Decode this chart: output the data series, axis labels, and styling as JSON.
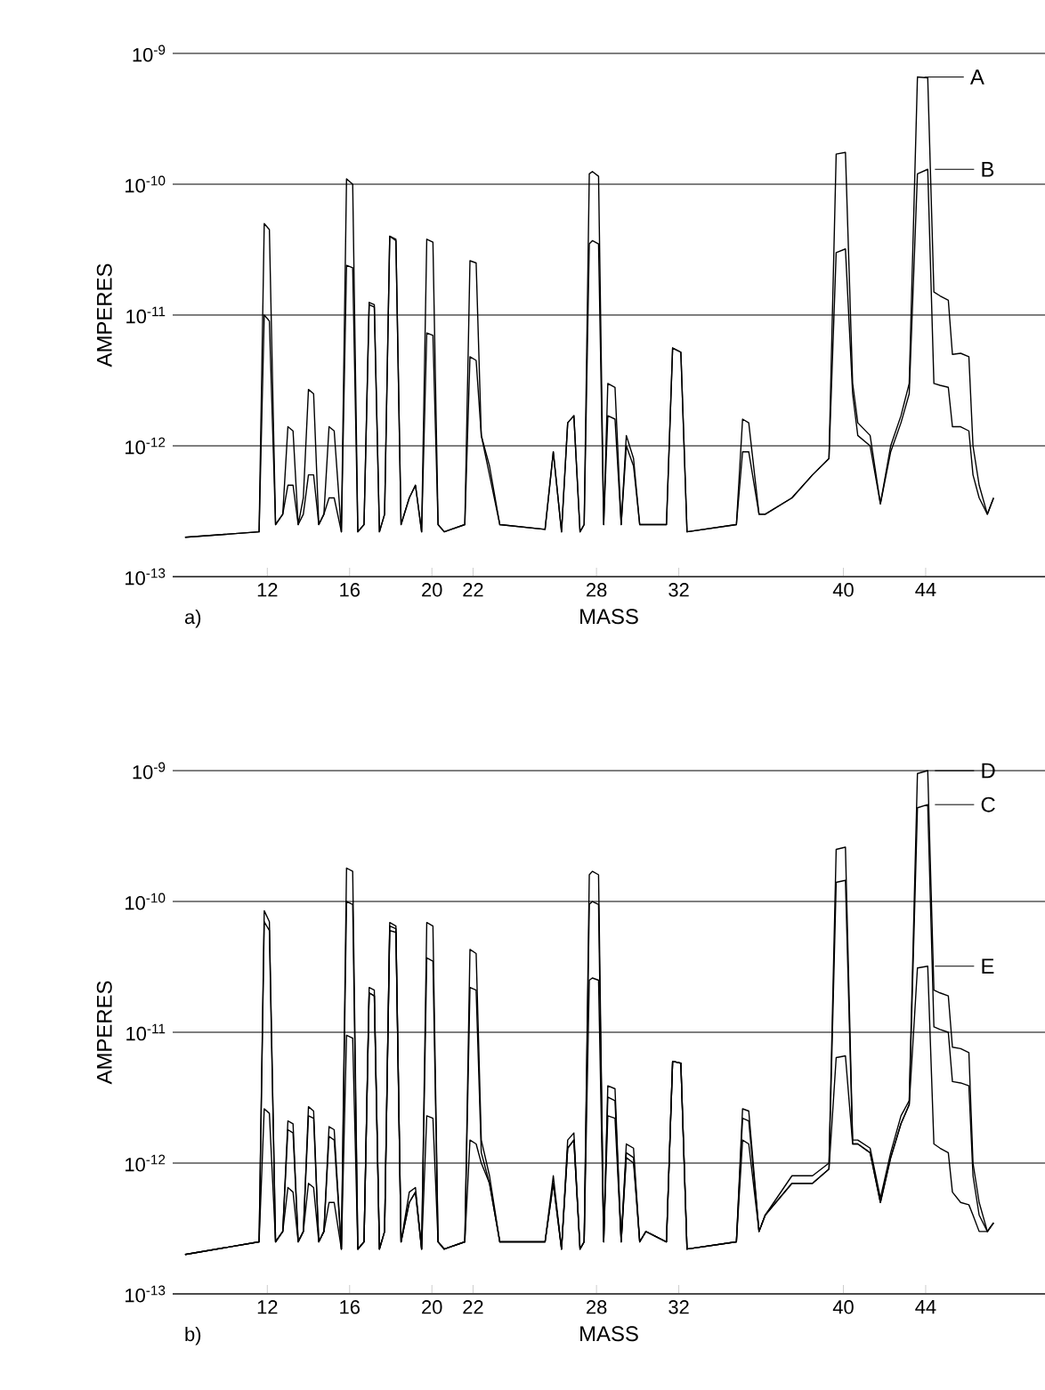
{
  "chart_data": [
    {
      "type": "line",
      "xlabel": "MASS",
      "ylabel": "AMPERES",
      "log": "y",
      "grid": "y",
      "annotations": [
        "a)"
      ],
      "legend": "top right",
      "xlim": [
        7.4,
        49.8
      ],
      "ylim": [
        1e-13,
        1e-09
      ],
      "xticks": [
        12,
        16,
        20,
        22,
        28,
        32,
        40,
        44
      ],
      "yticks": [
        {
          "value": 1e-13,
          "label": "10$^{-13}$"
        },
        {
          "value": 1e-12,
          "label": "10$^{-12}$"
        },
        {
          "value": 1e-11,
          "label": "10$^{-11}$"
        },
        {
          "value": 1e-10,
          "label": "10$^{-10}$"
        },
        {
          "value": 1e-09,
          "label": "10$^{-9}$"
        }
      ],
      "x": [
        8,
        11.6,
        11.85,
        12.1,
        12.4,
        12.75,
        13,
        13.25,
        13.5,
        13.75,
        14,
        14.25,
        14.5,
        14.75,
        15,
        15.25,
        15.6,
        15.85,
        16.15,
        16.4,
        16.7,
        16.95,
        17.2,
        17.45,
        17.7,
        17.95,
        18.25,
        18.5,
        18.9,
        19.2,
        19.5,
        19.75,
        20.05,
        20.3,
        20.6,
        21.6,
        21.85,
        22.15,
        22.4,
        22.8,
        23.3,
        25.5,
        25.9,
        26.3,
        26.6,
        26.9,
        27.2,
        27.4,
        27.65,
        27.8,
        28.1,
        28.35,
        28.55,
        28.9,
        29.2,
        29.45,
        29.8,
        30.1,
        30.4,
        31.4,
        31.7,
        32.1,
        32.4,
        34.8,
        35.1,
        35.4,
        35.9,
        36.2,
        37.5,
        38.5,
        39.3,
        39.65,
        40.1,
        40.45,
        40.7,
        41.3,
        41.8,
        42.3,
        42.8,
        43.2,
        43.6,
        44.1,
        44.4,
        44.7,
        45.1,
        45.3,
        45.7,
        46.1,
        46.3,
        46.6,
        47.0,
        47.3
      ],
      "series": [
        {
          "name": "A",
          "color": "#000000",
          "values": [
            2e-13,
            2.2e-13,
            5e-11,
            4.5e-11,
            2.5e-13,
            3e-13,
            1.4e-12,
            1.3e-12,
            2.5e-13,
            4e-13,
            2.7e-12,
            2.5e-12,
            2.5e-13,
            3e-13,
            1.4e-12,
            1.3e-12,
            2.2e-13,
            1.1e-10,
            1e-10,
            2.2e-13,
            2.5e-13,
            1.25e-11,
            1.2e-11,
            2.2e-13,
            3e-13,
            4e-11,
            3.8e-11,
            2.5e-13,
            4e-13,
            5e-13,
            2.2e-13,
            3.8e-11,
            3.6e-11,
            2.5e-13,
            2.2e-13,
            2.5e-13,
            2.6e-11,
            2.5e-11,
            1.2e-12,
            7e-13,
            2.5e-13,
            2.3e-13,
            9e-13,
            2.2e-13,
            1.5e-12,
            1.7e-12,
            2.2e-13,
            2.5e-13,
            1.2e-10,
            1.25e-10,
            1.15e-10,
            2.5e-13,
            3e-12,
            2.8e-12,
            2.5e-13,
            1.2e-12,
            8e-13,
            2.5e-13,
            2.5e-13,
            2.5e-13,
            5.6e-12,
            5.2e-12,
            2.2e-13,
            2.5e-13,
            1.6e-12,
            1.5e-12,
            3e-13,
            3e-13,
            4e-13,
            6e-13,
            8e-13,
            1.7e-10,
            1.75e-10,
            3e-12,
            1.5e-12,
            1.2e-12,
            3.6e-13,
            1e-12,
            1.7e-12,
            3e-12,
            6.6e-10,
            6.5e-10,
            1.5e-11,
            1.4e-11,
            1.3e-11,
            5e-12,
            5.1e-12,
            4.8e-12,
            1e-12,
            5e-13,
            3e-13,
            4e-13
          ]
        },
        {
          "name": "B",
          "color": "#000000",
          "values": [
            2e-13,
            2.2e-13,
            1e-11,
            9e-12,
            2.5e-13,
            3e-13,
            5e-13,
            5e-13,
            2.5e-13,
            3e-13,
            6e-13,
            6e-13,
            2.5e-13,
            3e-13,
            4e-13,
            4e-13,
            2.2e-13,
            2.4e-11,
            2.3e-11,
            2.2e-13,
            2.5e-13,
            1.2e-11,
            1.15e-11,
            2.2e-13,
            3e-13,
            4e-11,
            3.7e-11,
            2.5e-13,
            4e-13,
            5e-13,
            2.2e-13,
            7.3e-12,
            7e-12,
            2.5e-13,
            2.2e-13,
            2.5e-13,
            4.8e-12,
            4.5e-12,
            1.2e-12,
            6e-13,
            2.5e-13,
            2.3e-13,
            9e-13,
            2.2e-13,
            1.5e-12,
            1.7e-12,
            2.2e-13,
            2.5e-13,
            3.5e-11,
            3.7e-11,
            3.5e-11,
            2.5e-13,
            1.7e-12,
            1.6e-12,
            2.5e-13,
            1e-12,
            7e-13,
            2.5e-13,
            2.5e-13,
            2.5e-13,
            5.6e-12,
            5.2e-12,
            2.2e-13,
            2.5e-13,
            9e-13,
            9e-13,
            3e-13,
            3e-13,
            4e-13,
            6e-13,
            8e-13,
            3e-11,
            3.2e-11,
            2.5e-12,
            1.2e-12,
            1e-12,
            3.6e-13,
            9e-13,
            1.5e-12,
            2.5e-12,
            1.2e-10,
            1.3e-10,
            3e-12,
            2.9e-12,
            2.8e-12,
            1.4e-12,
            1.4e-12,
            1.3e-12,
            6e-13,
            4e-13,
            3e-13,
            4e-13
          ]
        }
      ]
    },
    {
      "type": "line",
      "xlabel": "MASS",
      "ylabel": "AMPERES",
      "log": "y",
      "grid": "y",
      "annotations": [
        "b)"
      ],
      "legend": "top right",
      "xlim": [
        7.4,
        49.8
      ],
      "ylim": [
        1e-13,
        1e-09
      ],
      "xticks": [
        12,
        16,
        20,
        22,
        28,
        32,
        40,
        44
      ],
      "yticks": [
        {
          "value": 1e-13,
          "label": "10$^{-13}$"
        },
        {
          "value": 1e-12,
          "label": "10$^{-12}$"
        },
        {
          "value": 1e-11,
          "label": "10$^{-11}$"
        },
        {
          "value": 1e-10,
          "label": "10$^{-10}$"
        },
        {
          "value": 1e-09,
          "label": "10$^{-9}$"
        }
      ],
      "x": [
        8,
        11.6,
        11.85,
        12.1,
        12.4,
        12.75,
        13,
        13.25,
        13.5,
        13.75,
        14,
        14.25,
        14.5,
        14.75,
        15,
        15.25,
        15.6,
        15.85,
        16.15,
        16.4,
        16.7,
        16.95,
        17.2,
        17.45,
        17.7,
        17.95,
        18.25,
        18.5,
        18.9,
        19.2,
        19.5,
        19.75,
        20.05,
        20.3,
        20.6,
        21.6,
        21.85,
        22.15,
        22.4,
        22.8,
        23.3,
        25.5,
        25.9,
        26.3,
        26.6,
        26.9,
        27.2,
        27.4,
        27.65,
        27.8,
        28.1,
        28.35,
        28.55,
        28.9,
        29.2,
        29.45,
        29.8,
        30.1,
        30.4,
        31.4,
        31.7,
        32.1,
        32.4,
        34.8,
        35.1,
        35.4,
        35.9,
        36.2,
        37.5,
        38.5,
        39.3,
        39.65,
        40.1,
        40.45,
        40.7,
        41.3,
        41.8,
        42.3,
        42.8,
        43.2,
        43.6,
        44.1,
        44.4,
        44.7,
        45.1,
        45.3,
        45.7,
        46.1,
        46.3,
        46.6,
        47.0,
        47.3
      ],
      "series": [
        {
          "name": "D",
          "color": "#000000",
          "values": [
            2e-13,
            2.5e-13,
            8.5e-11,
            7e-11,
            2.5e-13,
            3e-13,
            2.1e-12,
            2e-12,
            2.5e-13,
            3e-13,
            2.7e-12,
            2.5e-12,
            2.5e-13,
            3e-13,
            1.9e-12,
            1.8e-12,
            2.2e-13,
            1.8e-10,
            1.7e-10,
            2.2e-13,
            2.5e-13,
            2.2e-11,
            2.1e-11,
            2.2e-13,
            3e-13,
            6.9e-11,
            6.5e-11,
            2.5e-13,
            6e-13,
            6.5e-13,
            2.2e-13,
            6.9e-11,
            6.5e-11,
            2.5e-13,
            2.2e-13,
            2.5e-13,
            4.3e-11,
            4e-11,
            1.5e-12,
            8e-13,
            2.5e-13,
            2.5e-13,
            8e-13,
            2.2e-13,
            1.5e-12,
            1.7e-12,
            2.2e-13,
            2.5e-13,
            1.6e-10,
            1.7e-10,
            1.6e-10,
            2.5e-13,
            3.9e-12,
            3.7e-12,
            2.5e-13,
            1.4e-12,
            1.3e-12,
            2.5e-13,
            3e-13,
            2.5e-13,
            6e-12,
            5.8e-12,
            2.2e-13,
            2.5e-13,
            2.6e-12,
            2.5e-12,
            3e-13,
            4e-13,
            8e-13,
            8e-13,
            1e-12,
            2.5e-10,
            2.6e-10,
            1.5e-12,
            1.5e-12,
            1.3e-12,
            5.4e-13,
            1.2e-12,
            2.3e-12,
            3e-12,
            9.5e-10,
            1e-09,
            2.1e-11,
            2e-11,
            1.9e-11,
            7.7e-12,
            7.5e-12,
            7e-12,
            1e-12,
            5e-13,
            3e-13,
            3.5e-13
          ]
        },
        {
          "name": "C",
          "color": "#000000",
          "values": [
            2e-13,
            2.5e-13,
            7e-11,
            6e-11,
            2.5e-13,
            3e-13,
            1.8e-12,
            1.7e-12,
            2.5e-13,
            3e-13,
            2.3e-12,
            2.2e-12,
            2.5e-13,
            3e-13,
            1.6e-12,
            1.5e-12,
            2.2e-13,
            1e-10,
            9.5e-11,
            2.2e-13,
            2.5e-13,
            2e-11,
            1.9e-11,
            2.2e-13,
            3e-13,
            6.5e-11,
            6.2e-11,
            2.5e-13,
            5e-13,
            6e-13,
            2.2e-13,
            3.7e-11,
            3.5e-11,
            2.5e-13,
            2.2e-13,
            2.5e-13,
            2.2e-11,
            2.1e-11,
            1.2e-12,
            7e-13,
            2.5e-13,
            2.5e-13,
            7e-13,
            2.2e-13,
            1.3e-12,
            1.5e-12,
            2.2e-13,
            2.5e-13,
            9.5e-11,
            1e-10,
            9.5e-11,
            2.5e-13,
            3.2e-12,
            3e-12,
            2.5e-13,
            1.2e-12,
            1.1e-12,
            2.5e-13,
            3e-13,
            2.5e-13,
            6e-12,
            5.8e-12,
            2.2e-13,
            2.5e-13,
            2.2e-12,
            2.1e-12,
            3e-13,
            4e-13,
            7e-13,
            7e-13,
            9e-13,
            1.4e-10,
            1.45e-10,
            1.4e-12,
            1.4e-12,
            1.2e-12,
            5e-13,
            1.1e-12,
            2e-12,
            2.8e-12,
            5.2e-10,
            5.5e-10,
            1.1e-11,
            1.05e-11,
            1e-11,
            4.2e-12,
            4.1e-12,
            3.9e-12,
            8e-13,
            4e-13,
            3e-13,
            3.5e-13
          ]
        },
        {
          "name": "E",
          "color": "#000000",
          "values": [
            2e-13,
            2.5e-13,
            2.6e-12,
            2.4e-12,
            2.5e-13,
            3e-13,
            6.5e-13,
            6e-13,
            2.5e-13,
            3e-13,
            7e-13,
            6.5e-13,
            2.5e-13,
            3e-13,
            5e-13,
            5e-13,
            2.2e-13,
            9.5e-12,
            9e-12,
            2.2e-13,
            2.5e-13,
            2e-11,
            1.9e-11,
            2.2e-13,
            3e-13,
            6e-11,
            5.8e-11,
            2.5e-13,
            5e-13,
            6e-13,
            2.2e-13,
            2.3e-12,
            2.2e-12,
            2.5e-13,
            2.2e-13,
            2.5e-13,
            1.5e-12,
            1.4e-12,
            1e-12,
            7e-13,
            2.5e-13,
            2.5e-13,
            7e-13,
            2.2e-13,
            1.3e-12,
            1.5e-12,
            2.2e-13,
            2.5e-13,
            2.5e-11,
            2.6e-11,
            2.5e-11,
            2.5e-13,
            2.3e-12,
            2.2e-12,
            2.5e-13,
            1.1e-12,
            1e-12,
            2.5e-13,
            3e-13,
            2.5e-13,
            6e-12,
            5.8e-12,
            2.2e-13,
            2.5e-13,
            1.5e-12,
            1.4e-12,
            3e-13,
            4e-13,
            7e-13,
            7e-13,
            9e-13,
            6.4e-12,
            6.6e-12,
            1.4e-12,
            1.4e-12,
            1.2e-12,
            5e-13,
            1.1e-12,
            2e-12,
            2.8e-12,
            3.1e-11,
            3.2e-11,
            1.4e-12,
            1.3e-12,
            1.2e-12,
            6e-13,
            5e-13,
            4.8e-13,
            4e-13,
            3e-13,
            3e-13,
            3.5e-13
          ]
        }
      ]
    }
  ]
}
